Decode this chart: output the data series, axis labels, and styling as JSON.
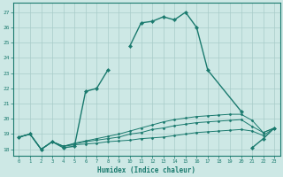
{
  "xlabel": "Humidex (Indice chaleur)",
  "xlim": [
    -0.5,
    23.5
  ],
  "ylim": [
    17.6,
    27.6
  ],
  "bg_color": "#cde8e5",
  "grid_color": "#a8ccc9",
  "line_color": "#1a7a6e",
  "xticks": [
    0,
    1,
    2,
    3,
    4,
    5,
    6,
    7,
    8,
    9,
    10,
    11,
    12,
    13,
    14,
    15,
    16,
    17,
    18,
    19,
    20,
    21,
    22,
    23
  ],
  "yticks": [
    18,
    19,
    20,
    21,
    22,
    23,
    24,
    25,
    26,
    27
  ],
  "curve_main": {
    "x": [
      0,
      1,
      2,
      3,
      4,
      5,
      6,
      7,
      8,
      10,
      11,
      12,
      13,
      14,
      15,
      16,
      17,
      20,
      21,
      22,
      23
    ],
    "y": [
      18.8,
      19.0,
      18.0,
      18.5,
      18.1,
      18.2,
      21.8,
      22.0,
      23.2,
      24.8,
      26.3,
      26.4,
      26.7,
      26.5,
      27.0,
      26.0,
      23.2,
      20.5,
      18.1,
      18.7,
      19.4
    ]
  },
  "curve2": {
    "x": [
      0,
      1,
      2,
      3,
      4,
      5,
      6,
      7,
      8,
      9,
      10,
      11,
      12,
      13,
      14,
      15,
      16,
      17,
      18,
      19,
      20,
      21,
      22,
      23
    ],
    "y": [
      18.8,
      19.0,
      18.0,
      18.5,
      18.2,
      18.3,
      18.35,
      18.4,
      18.5,
      18.55,
      18.6,
      18.7,
      18.75,
      18.8,
      18.9,
      19.0,
      19.1,
      19.15,
      19.2,
      19.25,
      19.3,
      19.2,
      18.9,
      19.4
    ]
  },
  "curve3": {
    "x": [
      0,
      1,
      2,
      3,
      4,
      5,
      6,
      7,
      8,
      9,
      10,
      11,
      12,
      13,
      14,
      15,
      16,
      17,
      18,
      19,
      20,
      21,
      22,
      23
    ],
    "y": [
      18.8,
      19.0,
      18.0,
      18.5,
      18.2,
      18.35,
      18.5,
      18.6,
      18.7,
      18.8,
      19.0,
      19.1,
      19.3,
      19.4,
      19.55,
      19.65,
      19.75,
      19.8,
      19.85,
      19.9,
      19.95,
      19.5,
      19.1,
      19.4
    ]
  },
  "curve4": {
    "x": [
      0,
      1,
      2,
      3,
      4,
      5,
      6,
      7,
      8,
      9,
      10,
      11,
      12,
      13,
      14,
      15,
      16,
      17,
      18,
      19,
      20,
      21,
      22,
      23
    ],
    "y": [
      18.8,
      19.0,
      18.0,
      18.5,
      18.2,
      18.4,
      18.55,
      18.7,
      18.85,
      19.0,
      19.2,
      19.4,
      19.6,
      19.8,
      19.95,
      20.05,
      20.15,
      20.2,
      20.25,
      20.3,
      20.3,
      19.9,
      19.1,
      19.4
    ]
  }
}
